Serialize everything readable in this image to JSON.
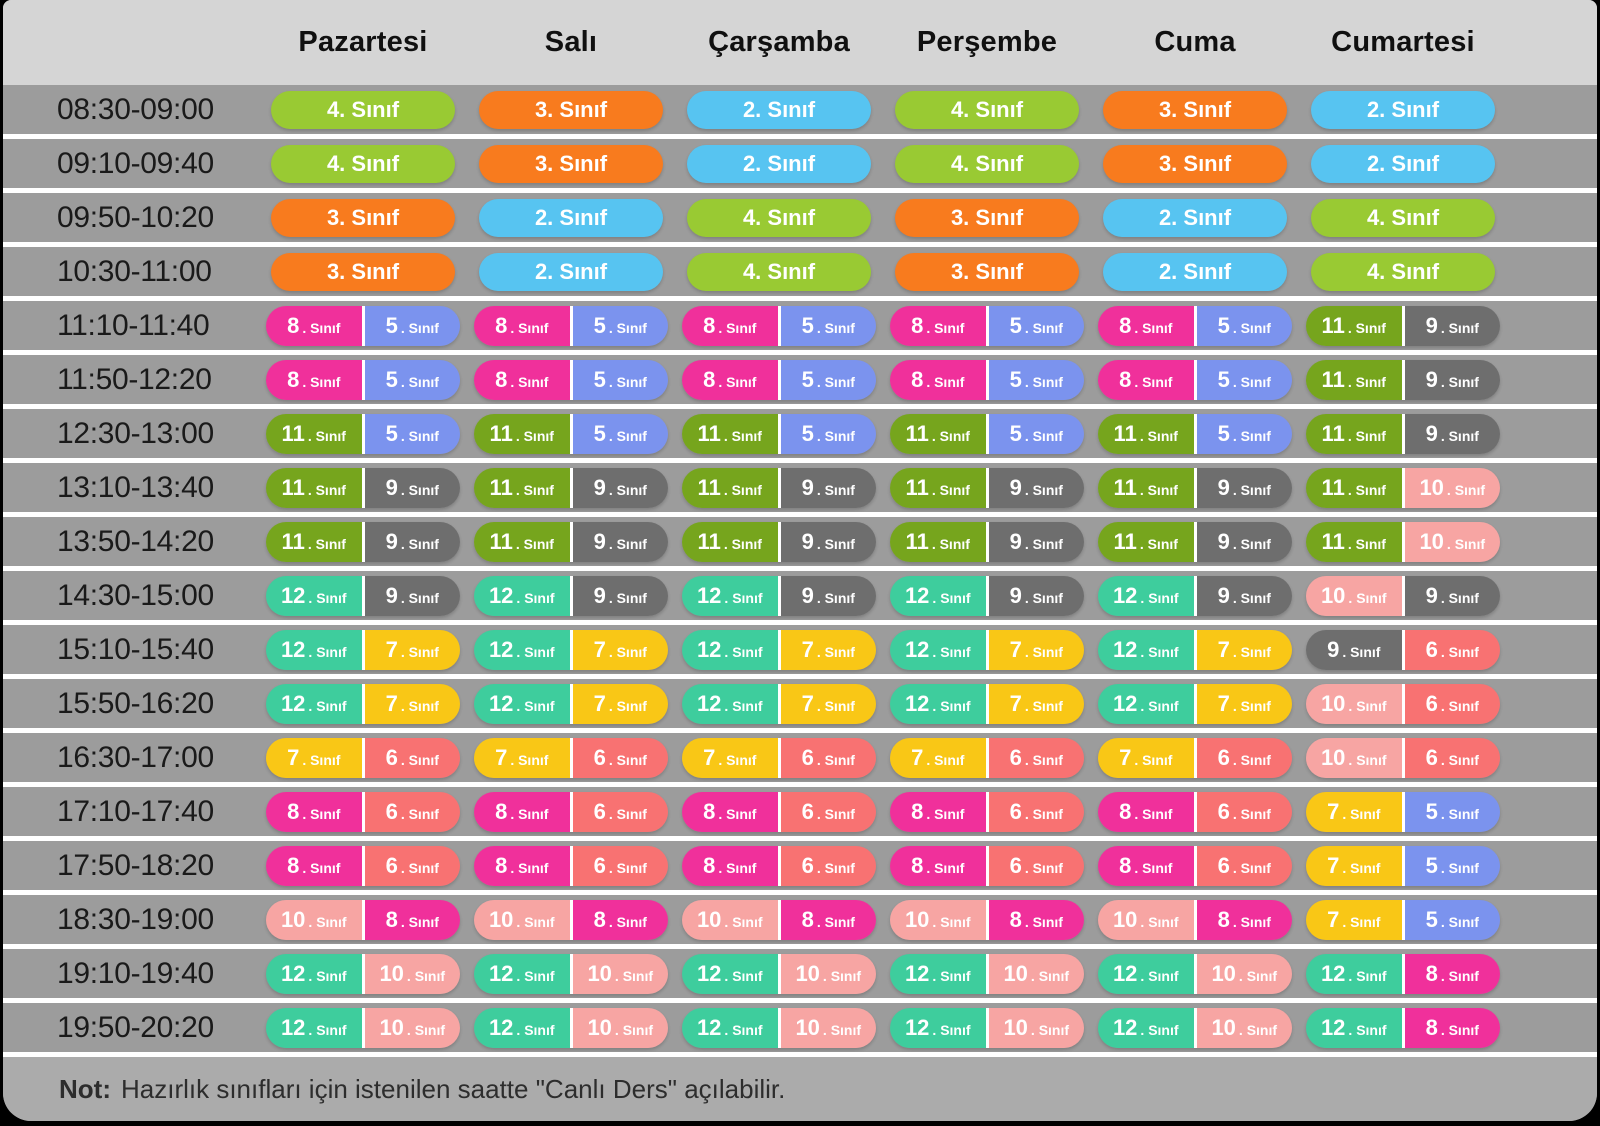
{
  "chart_data": {
    "type": "table",
    "columns": [
      "Pazartesi",
      "Salı",
      "Çarşamba",
      "Perşembe",
      "Cuma",
      "Cumartesi"
    ],
    "rows": [
      {
        "time": "08:30-09:00",
        "cells": [
          [
            "4"
          ],
          [
            "3"
          ],
          [
            "2"
          ],
          [
            "4"
          ],
          [
            "3"
          ],
          [
            "2"
          ]
        ]
      },
      {
        "time": "09:10-09:40",
        "cells": [
          [
            "4"
          ],
          [
            "3"
          ],
          [
            "2"
          ],
          [
            "4"
          ],
          [
            "3"
          ],
          [
            "2"
          ]
        ]
      },
      {
        "time": "09:50-10:20",
        "cells": [
          [
            "3"
          ],
          [
            "2"
          ],
          [
            "4"
          ],
          [
            "3"
          ],
          [
            "2"
          ],
          [
            "4"
          ]
        ]
      },
      {
        "time": "10:30-11:00",
        "cells": [
          [
            "3"
          ],
          [
            "2"
          ],
          [
            "4"
          ],
          [
            "3"
          ],
          [
            "2"
          ],
          [
            "4"
          ]
        ]
      },
      {
        "time": "11:10-11:40",
        "cells": [
          [
            "8",
            "5"
          ],
          [
            "8",
            "5"
          ],
          [
            "8",
            "5"
          ],
          [
            "8",
            "5"
          ],
          [
            "8",
            "5"
          ],
          [
            "11",
            "9"
          ]
        ]
      },
      {
        "time": "11:50-12:20",
        "cells": [
          [
            "8",
            "5"
          ],
          [
            "8",
            "5"
          ],
          [
            "8",
            "5"
          ],
          [
            "8",
            "5"
          ],
          [
            "8",
            "5"
          ],
          [
            "11",
            "9"
          ]
        ]
      },
      {
        "time": "12:30-13:00",
        "cells": [
          [
            "11",
            "5"
          ],
          [
            "11",
            "5"
          ],
          [
            "11",
            "5"
          ],
          [
            "11",
            "5"
          ],
          [
            "11",
            "5"
          ],
          [
            "11",
            "9"
          ]
        ]
      },
      {
        "time": "13:10-13:40",
        "cells": [
          [
            "11",
            "9"
          ],
          [
            "11",
            "9"
          ],
          [
            "11",
            "9"
          ],
          [
            "11",
            "9"
          ],
          [
            "11",
            "9"
          ],
          [
            "11",
            "10"
          ]
        ]
      },
      {
        "time": "13:50-14:20",
        "cells": [
          [
            "11",
            "9"
          ],
          [
            "11",
            "9"
          ],
          [
            "11",
            "9"
          ],
          [
            "11",
            "9"
          ],
          [
            "11",
            "9"
          ],
          [
            "11",
            "10"
          ]
        ]
      },
      {
        "time": "14:30-15:00",
        "cells": [
          [
            "12",
            "9"
          ],
          [
            "12",
            "9"
          ],
          [
            "12",
            "9"
          ],
          [
            "12",
            "9"
          ],
          [
            "12",
            "9"
          ],
          [
            "10",
            "9"
          ]
        ]
      },
      {
        "time": "15:10-15:40",
        "cells": [
          [
            "12",
            "7"
          ],
          [
            "12",
            "7"
          ],
          [
            "12",
            "7"
          ],
          [
            "12",
            "7"
          ],
          [
            "12",
            "7"
          ],
          [
            "9",
            "6"
          ]
        ]
      },
      {
        "time": "15:50-16:20",
        "cells": [
          [
            "12",
            "7"
          ],
          [
            "12",
            "7"
          ],
          [
            "12",
            "7"
          ],
          [
            "12",
            "7"
          ],
          [
            "12",
            "7"
          ],
          [
            "10",
            "6"
          ]
        ]
      },
      {
        "time": "16:30-17:00",
        "cells": [
          [
            "7",
            "6"
          ],
          [
            "7",
            "6"
          ],
          [
            "7",
            "6"
          ],
          [
            "7",
            "6"
          ],
          [
            "7",
            "6"
          ],
          [
            "10",
            "6"
          ]
        ]
      },
      {
        "time": "17:10-17:40",
        "cells": [
          [
            "8",
            "6"
          ],
          [
            "8",
            "6"
          ],
          [
            "8",
            "6"
          ],
          [
            "8",
            "6"
          ],
          [
            "8",
            "6"
          ],
          [
            "7",
            "5"
          ]
        ]
      },
      {
        "time": "17:50-18:20",
        "cells": [
          [
            "8",
            "6"
          ],
          [
            "8",
            "6"
          ],
          [
            "8",
            "6"
          ],
          [
            "8",
            "6"
          ],
          [
            "8",
            "6"
          ],
          [
            "7",
            "5"
          ]
        ]
      },
      {
        "time": "18:30-19:00",
        "cells": [
          [
            "10",
            "8"
          ],
          [
            "10",
            "8"
          ],
          [
            "10",
            "8"
          ],
          [
            "10",
            "8"
          ],
          [
            "10",
            "8"
          ],
          [
            "7",
            "5"
          ]
        ]
      },
      {
        "time": "19:10-19:40",
        "cells": [
          [
            "12",
            "10"
          ],
          [
            "12",
            "10"
          ],
          [
            "12",
            "10"
          ],
          [
            "12",
            "10"
          ],
          [
            "12",
            "10"
          ],
          [
            "12",
            "8"
          ]
        ]
      },
      {
        "time": "19:50-20:20",
        "cells": [
          [
            "12",
            "10"
          ],
          [
            "12",
            "10"
          ],
          [
            "12",
            "10"
          ],
          [
            "12",
            "10"
          ],
          [
            "12",
            "10"
          ],
          [
            "12",
            "8"
          ]
        ]
      }
    ]
  },
  "class_suffix": "Sınıf",
  "grade_labels": {
    "2": "2. Sınıf",
    "3": "3. Sınıf",
    "4": "4. Sınıf",
    "5": "5. Sınıf",
    "6": "6. Sınıf",
    "7": "7. Sınıf",
    "8": "8. Sınıf",
    "9": "9. Sınıf",
    "10": "10. Sınıf",
    "11": "11. Sınıf",
    "12": "12. Sınıf"
  },
  "grade_colors": {
    "2": "#57c4f1",
    "3": "#f87b1e",
    "4": "#99ca33",
    "5": "#7b93ee",
    "6": "#f87272",
    "7": "#f9c716",
    "8": "#f0309b",
    "9": "#6e6e6e",
    "10": "#f7a5a3",
    "11": "#76a51d",
    "12": "#3ecd9d"
  },
  "theme": {
    "page_bg": "#000000",
    "header_bg": "#d5d5d5",
    "row_bg": "#9c9c9c",
    "footer_bg": "#ababab",
    "separator": "#ffffff",
    "pill_text": "#ffffff",
    "header_text": "#101010",
    "time_text": "#1a1a1a",
    "note_text": "#2d2d2d"
  },
  "note": {
    "label": "Not:",
    "text": "Hazırlık sınıfları için istenilen saatte \"Canlı Ders\" açılabilir."
  }
}
